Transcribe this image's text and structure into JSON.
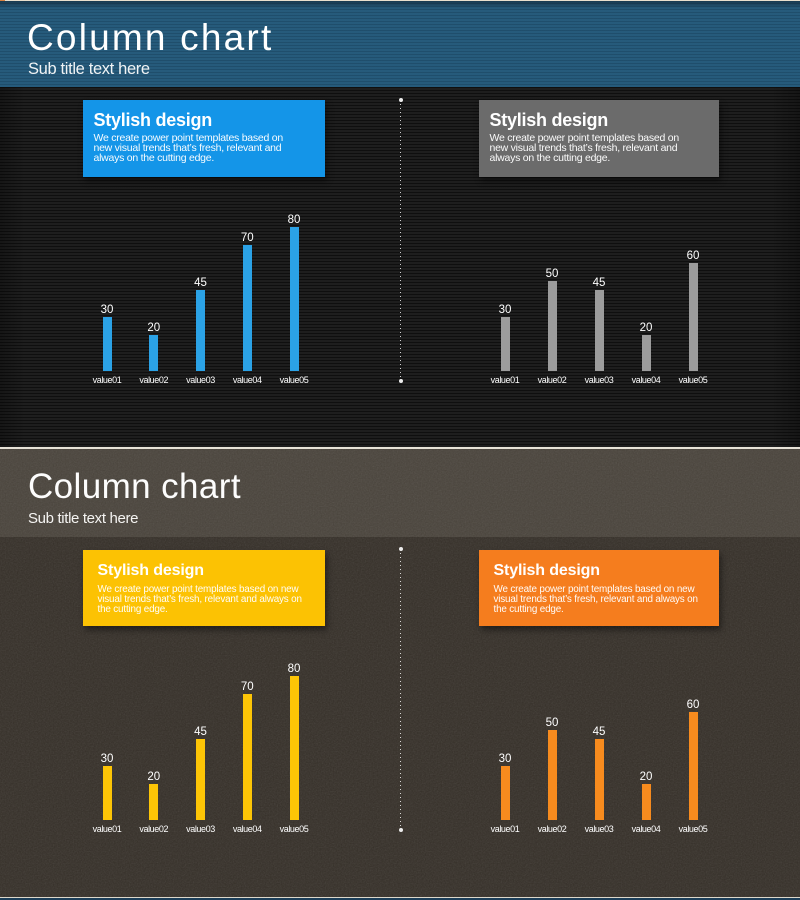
{
  "slides": [
    {
      "title": "Column chart",
      "subtitle": "Sub title text here",
      "theme": {
        "header_bg": "#22567b",
        "body_bg": "#1a1a1a",
        "text_color": "#ffffff"
      },
      "cards": [
        {
          "title": "Stylish design",
          "lines": [
            "We create power point templates based on",
            "new visual trends that’s fresh, relevant and",
            "always on the cutting edge."
          ],
          "color": "#1495e8"
        },
        {
          "title": "Stylish design",
          "lines": [
            "We create power point templates based on",
            "new visual trends that’s fresh, relevant and",
            "always on the cutting edge."
          ],
          "color": "#6b6b6b"
        }
      ]
    },
    {
      "title": "Column chart",
      "subtitle": "Sub title text here",
      "theme": {
        "header_bg": "#4e4840",
        "body_bg": "#39332c",
        "text_color": "#ffffff"
      },
      "cards": [
        {
          "title": "Stylish design",
          "lines": [
            "We create power point templates based on new",
            "visual trends that’s fresh, relevant and always on",
            "the cutting edge."
          ],
          "color": "#fcc203"
        },
        {
          "title": "Stylish design",
          "lines": [
            "We create power point templates based on new",
            "visual trends that’s fresh, relevant and always on",
            "the cutting edge."
          ],
          "color": "#f57d1e"
        }
      ]
    }
  ],
  "chart_data": [
    {
      "type": "bar",
      "title": "",
      "categories": [
        "value01",
        "value02",
        "value03",
        "value04",
        "value05"
      ],
      "values": [
        30,
        20,
        45,
        70,
        80
      ],
      "bar_color": "#2ba2e6",
      "label_color": "#ffffff",
      "ylim": [
        0,
        80
      ],
      "grid": false,
      "legend": "none"
    },
    {
      "type": "bar",
      "title": "",
      "categories": [
        "value01",
        "value02",
        "value03",
        "value04",
        "value05"
      ],
      "values": [
        30,
        50,
        45,
        20,
        60
      ],
      "bar_color": "#9c9c9c",
      "label_color": "#ffffff",
      "ylim": [
        0,
        80
      ],
      "grid": false,
      "legend": "none"
    },
    {
      "type": "bar",
      "title": "",
      "categories": [
        "value01",
        "value02",
        "value03",
        "value04",
        "value05"
      ],
      "values": [
        30,
        20,
        45,
        70,
        80
      ],
      "bar_color": "#fdc506",
      "label_color": "#ffffff",
      "ylim": [
        0,
        80
      ],
      "grid": false,
      "legend": "none"
    },
    {
      "type": "bar",
      "title": "",
      "categories": [
        "value01",
        "value02",
        "value03",
        "value04",
        "value05"
      ],
      "values": [
        30,
        50,
        45,
        20,
        60
      ],
      "bar_color": "#f78b1e",
      "label_color": "#ffffff",
      "ylim": [
        0,
        80
      ],
      "grid": false,
      "legend": "none"
    }
  ]
}
